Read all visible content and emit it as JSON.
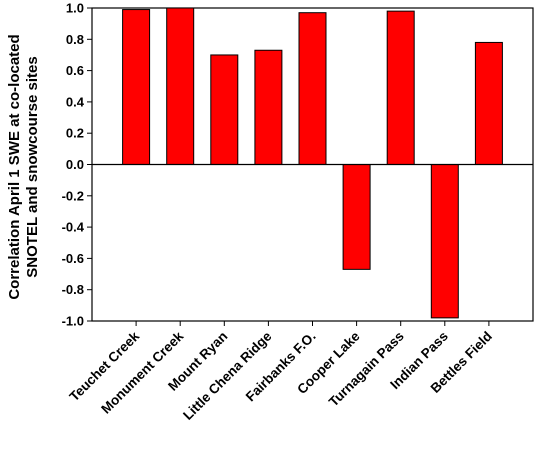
{
  "chart_data": {
    "type": "bar",
    "title": "",
    "xlabel": "",
    "ylabel": [
      "Correlation April 1 SWE at co-located",
      "SNOTEL and snowcourse sites"
    ],
    "categories": [
      "Teuchet Creek",
      "Monument Creek",
      "Mount Ryan",
      "Little Chena Ridge",
      "Fairbanks F.O.",
      "Cooper Lake",
      "Turnagain Pass",
      "Indian Pass",
      "Bettles Field"
    ],
    "values": [
      0.99,
      1.0,
      0.7,
      0.73,
      0.97,
      -0.67,
      0.98,
      -0.98,
      0.78
    ],
    "ylim": [
      -1.0,
      1.0
    ],
    "yticks": [
      "-1.0",
      "-0.8",
      "-0.6",
      "-0.4",
      "-0.2",
      "0.0",
      "0.2",
      "0.4",
      "0.6",
      "0.8",
      "1.0"
    ],
    "bar_color": "#ff0000",
    "zero_line": true,
    "grid": false
  }
}
